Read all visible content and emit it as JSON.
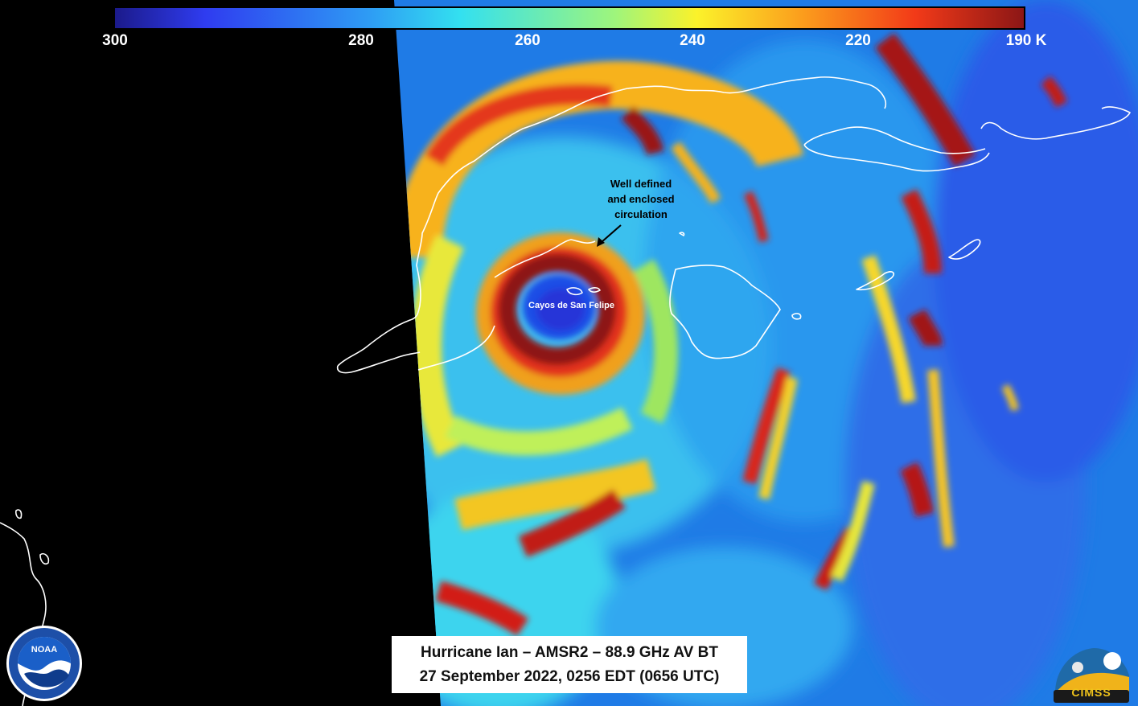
{
  "colorbar": {
    "ticks": [
      "300",
      "280",
      "260",
      "240",
      "220",
      "190 K"
    ],
    "colors": [
      "#1b1a8a",
      "#2f3cf0",
      "#2e9cf4",
      "#33e0f0",
      "#9ef57c",
      "#fbf22a",
      "#fb9a1c",
      "#f23a18",
      "#8b1616"
    ]
  },
  "annotation": {
    "lines": [
      "Well defined",
      "and enclosed",
      "circulation"
    ]
  },
  "place_label": "Cayos de San Felipe",
  "caption": {
    "line1": "Hurricane Ian – AMSR2 – 88.9 GHz AV BT",
    "line2": "27 September 2022, 0256 EDT (0656 UTC)"
  },
  "logos": {
    "noaa": "NOAA",
    "cimss": "CIMSS"
  }
}
